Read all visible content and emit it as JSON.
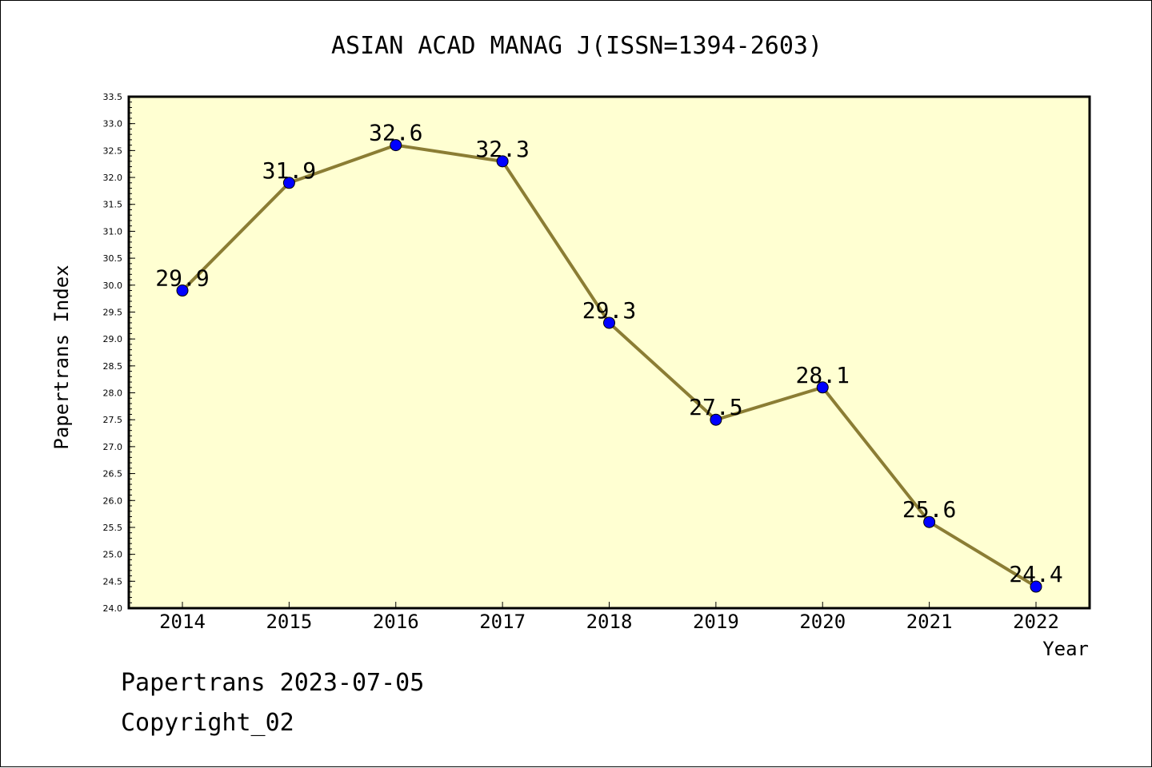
{
  "chart_data": {
    "type": "line",
    "title": "ASIAN ACAD MANAG J(ISSN=1394-2603)",
    "xlabel": "Year",
    "ylabel": "Papertrans Index",
    "x": [
      "2014",
      "2015",
      "2016",
      "2017",
      "2018",
      "2019",
      "2020",
      "2021",
      "2022"
    ],
    "series": [
      {
        "values": [
          29.9,
          31.9,
          32.6,
          32.3,
          29.3,
          27.5,
          28.1,
          25.6,
          24.4
        ],
        "labels": [
          "29.9",
          "31.9",
          "32.6",
          "32.3",
          "29.3",
          "27.5",
          "28.1",
          "25.6",
          "24.4"
        ]
      }
    ],
    "ylim": [
      24.0,
      33.5
    ],
    "yticks": [
      "24.0",
      "24.5",
      "25.0",
      "25.5",
      "26.0",
      "26.5",
      "27.0",
      "27.5",
      "28.0",
      "28.5",
      "29.0",
      "29.5",
      "30.0",
      "30.5",
      "31.0",
      "31.5",
      "32.0",
      "32.5",
      "33.0",
      "33.5"
    ],
    "grid": false,
    "colors": {
      "plot_background": "#ffffd2",
      "line": "#8b7d34",
      "marker": "#0000ff"
    }
  },
  "footer": {
    "line1": "Papertrans 2023-07-05",
    "line2": "Copyright_02"
  }
}
